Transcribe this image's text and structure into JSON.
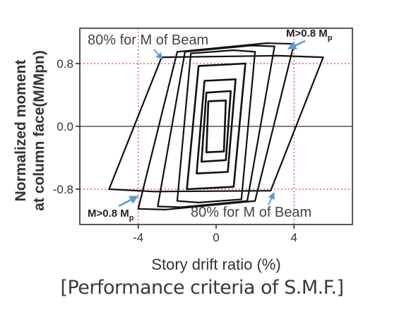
{
  "caption": "[Performance criteria of S.M.F.]",
  "chart_data": {
    "type": "line",
    "title": "",
    "xlabel": "Story drift ratio (%)",
    "ylabel_line1": "Normalized moment",
    "ylabel_line2": "at column face(M/Mpn)",
    "xlim": [
      -7,
      7
    ],
    "ylim": [
      -1.25,
      1.25
    ],
    "xticks": [
      -4,
      0,
      4
    ],
    "xtick_labels": [
      "-4",
      "0",
      "4"
    ],
    "yticks": [
      -0.8,
      0.0,
      0.8
    ],
    "ytick_labels": [
      "-0.8",
      "0.0",
      "0.8"
    ],
    "reference_lines": [
      {
        "axis": "y",
        "value": 0.8,
        "style": "dotted",
        "color": "#d65a5a"
      },
      {
        "axis": "y",
        "value": -0.8,
        "style": "dotted",
        "color": "#d65a5a"
      },
      {
        "axis": "x",
        "value": -4,
        "style": "dotted",
        "color": "#d65a5a"
      },
      {
        "axis": "x",
        "value": 4,
        "style": "dotted",
        "color": "#d65a5a"
      },
      {
        "axis": "y",
        "value": 0.0,
        "style": "solid",
        "color": "#555555"
      }
    ],
    "annotations": [
      {
        "text": "80% for M of Beam",
        "location": "top-left"
      },
      {
        "text": "80% for M of Beam",
        "location": "bottom-right"
      },
      {
        "text": "M>0.8 M",
        "subscript": "p",
        "location": "top-right"
      },
      {
        "text": "M>0.8 M",
        "subscript": "p",
        "location": "bottom-left"
      }
    ],
    "series": [
      {
        "amplitude": 0.5,
        "loop": [
          [
            0.5,
            0.33
          ],
          [
            -0.4,
            0.32
          ],
          [
            -0.5,
            -0.33
          ],
          [
            0.4,
            -0.32
          ]
        ]
      },
      {
        "amplitude": 0.75,
        "loop": [
          [
            0.75,
            0.45
          ],
          [
            -0.5,
            0.43
          ],
          [
            -0.75,
            -0.45
          ],
          [
            0.5,
            -0.43
          ]
        ]
      },
      {
        "amplitude": 1.0,
        "loop": [
          [
            1.0,
            0.6
          ],
          [
            -0.6,
            0.58
          ],
          [
            -1.0,
            -0.6
          ],
          [
            0.6,
            -0.58
          ]
        ]
      },
      {
        "amplitude": 1.5,
        "loop": [
          [
            1.5,
            0.8
          ],
          [
            -0.9,
            0.77
          ],
          [
            -1.5,
            -0.8
          ],
          [
            0.9,
            -0.77
          ]
        ]
      },
      {
        "amplitude": 2.0,
        "loop": [
          [
            2.0,
            0.95
          ],
          [
            0.9,
            0.97
          ],
          [
            -1.3,
            0.93
          ],
          [
            -2.0,
            -0.95
          ],
          [
            -0.9,
            -0.97
          ],
          [
            1.3,
            -0.93
          ]
        ]
      },
      {
        "amplitude": 3.0,
        "loop": [
          [
            3.0,
            1.02
          ],
          [
            1.8,
            1.03
          ],
          [
            -1.6,
            0.95
          ],
          [
            -3.0,
            -1.02
          ],
          [
            -1.8,
            -1.03
          ],
          [
            1.6,
            -0.95
          ]
        ]
      },
      {
        "amplitude": 4.0,
        "loop": [
          [
            4.0,
            1.05
          ],
          [
            2.6,
            1.06
          ],
          [
            -2.0,
            0.95
          ],
          [
            -4.0,
            -1.05
          ],
          [
            -2.6,
            -1.06
          ],
          [
            2.0,
            -0.95
          ]
        ]
      },
      {
        "amplitude": 5.5,
        "loop": [
          [
            5.5,
            0.88
          ],
          [
            3.2,
            0.9
          ],
          [
            -2.8,
            0.88
          ],
          [
            -5.5,
            -0.8
          ],
          [
            -3.2,
            -0.83
          ],
          [
            2.8,
            -0.82
          ]
        ]
      }
    ]
  }
}
